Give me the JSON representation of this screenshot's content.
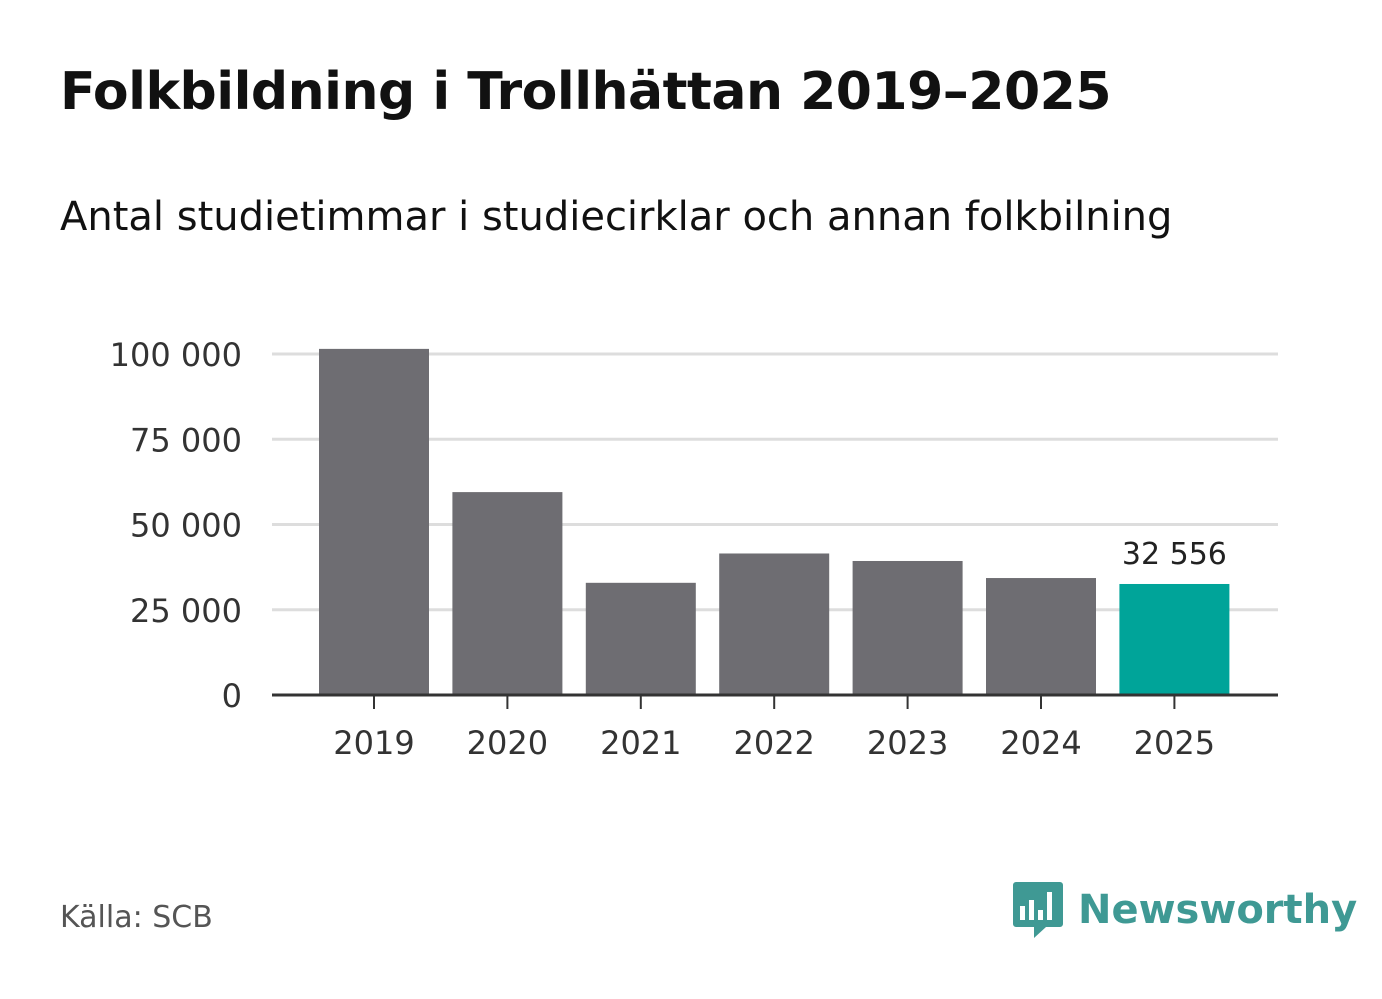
{
  "title": "Folkbildning i Trollhättan 2019–2025",
  "subtitle": "Antal studietimmar i studiecirklar och annan folkbilning",
  "source": "Källa: SCB",
  "brand": {
    "name": "Newsworthy",
    "icon": "newsworthy-logo-icon",
    "color": "#3f9994"
  },
  "chart_data": {
    "type": "bar",
    "categories": [
      "2019",
      "2020",
      "2021",
      "2022",
      "2023",
      "2024",
      "2025"
    ],
    "values": [
      101500,
      59500,
      32900,
      41500,
      39300,
      34300,
      32556
    ],
    "ylim": [
      0,
      100000
    ],
    "yticks": [
      0,
      25000,
      50000,
      75000,
      100000
    ],
    "ytick_labels": [
      "0",
      "25 000",
      "50 000",
      "75 000",
      "100 000"
    ],
    "highlight_index": 6,
    "highlight_label": "32 556",
    "colors": {
      "bar": "#6e6d72",
      "highlight": "#00a499",
      "grid": "#dddddd",
      "axis": "#333333"
    },
    "grid": true,
    "legend": "none"
  }
}
